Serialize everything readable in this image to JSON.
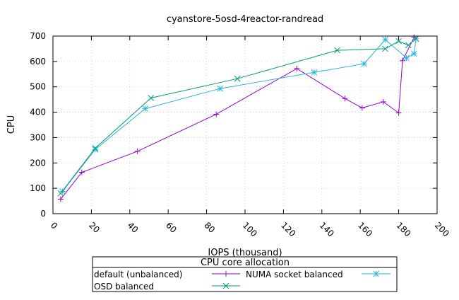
{
  "chart_data": {
    "type": "line",
    "title": "cyanstore-5osd-4reactor-randread",
    "xlabel": "IOPS (thousand)",
    "ylabel": "CPU",
    "xlim": [
      0,
      200
    ],
    "ylim": [
      0,
      700
    ],
    "x_ticks": [
      0,
      20,
      40,
      60,
      80,
      100,
      120,
      140,
      160,
      180,
      200
    ],
    "y_ticks": [
      0,
      100,
      200,
      300,
      400,
      500,
      600,
      700
    ],
    "grid": true,
    "legend": {
      "title": "CPU core allocation",
      "placement": "bottom-center"
    },
    "series": [
      {
        "name": "default (unbalanced)",
        "color": "#9400d3",
        "marker": "plus",
        "points": [
          [
            4,
            57
          ],
          [
            15,
            163
          ],
          [
            44,
            246
          ],
          [
            85,
            392
          ],
          [
            127,
            572
          ],
          [
            152,
            454
          ],
          [
            161,
            417
          ],
          [
            172,
            441
          ],
          [
            180,
            397
          ],
          [
            182,
            603
          ],
          [
            188,
            695
          ]
        ]
      },
      {
        "name": "NUMA socket balanced",
        "color": "#2fb5e0",
        "marker": "asterisk",
        "points": [
          [
            5,
            88
          ],
          [
            22,
            253
          ],
          [
            48,
            414
          ],
          [
            87,
            493
          ],
          [
            136,
            557
          ],
          [
            162,
            591
          ],
          [
            173,
            686
          ],
          [
            184,
            614
          ],
          [
            188,
            631
          ],
          [
            189,
            690
          ]
        ]
      },
      {
        "name": "OSD balanced",
        "color": "#009e73",
        "marker": "cross",
        "points": [
          [
            4,
            80
          ],
          [
            22,
            258
          ],
          [
            51,
            456
          ],
          [
            96,
            532
          ],
          [
            148,
            644
          ],
          [
            173,
            650
          ],
          [
            180,
            680
          ],
          [
            185,
            664
          ],
          [
            189,
            690
          ]
        ]
      }
    ]
  }
}
